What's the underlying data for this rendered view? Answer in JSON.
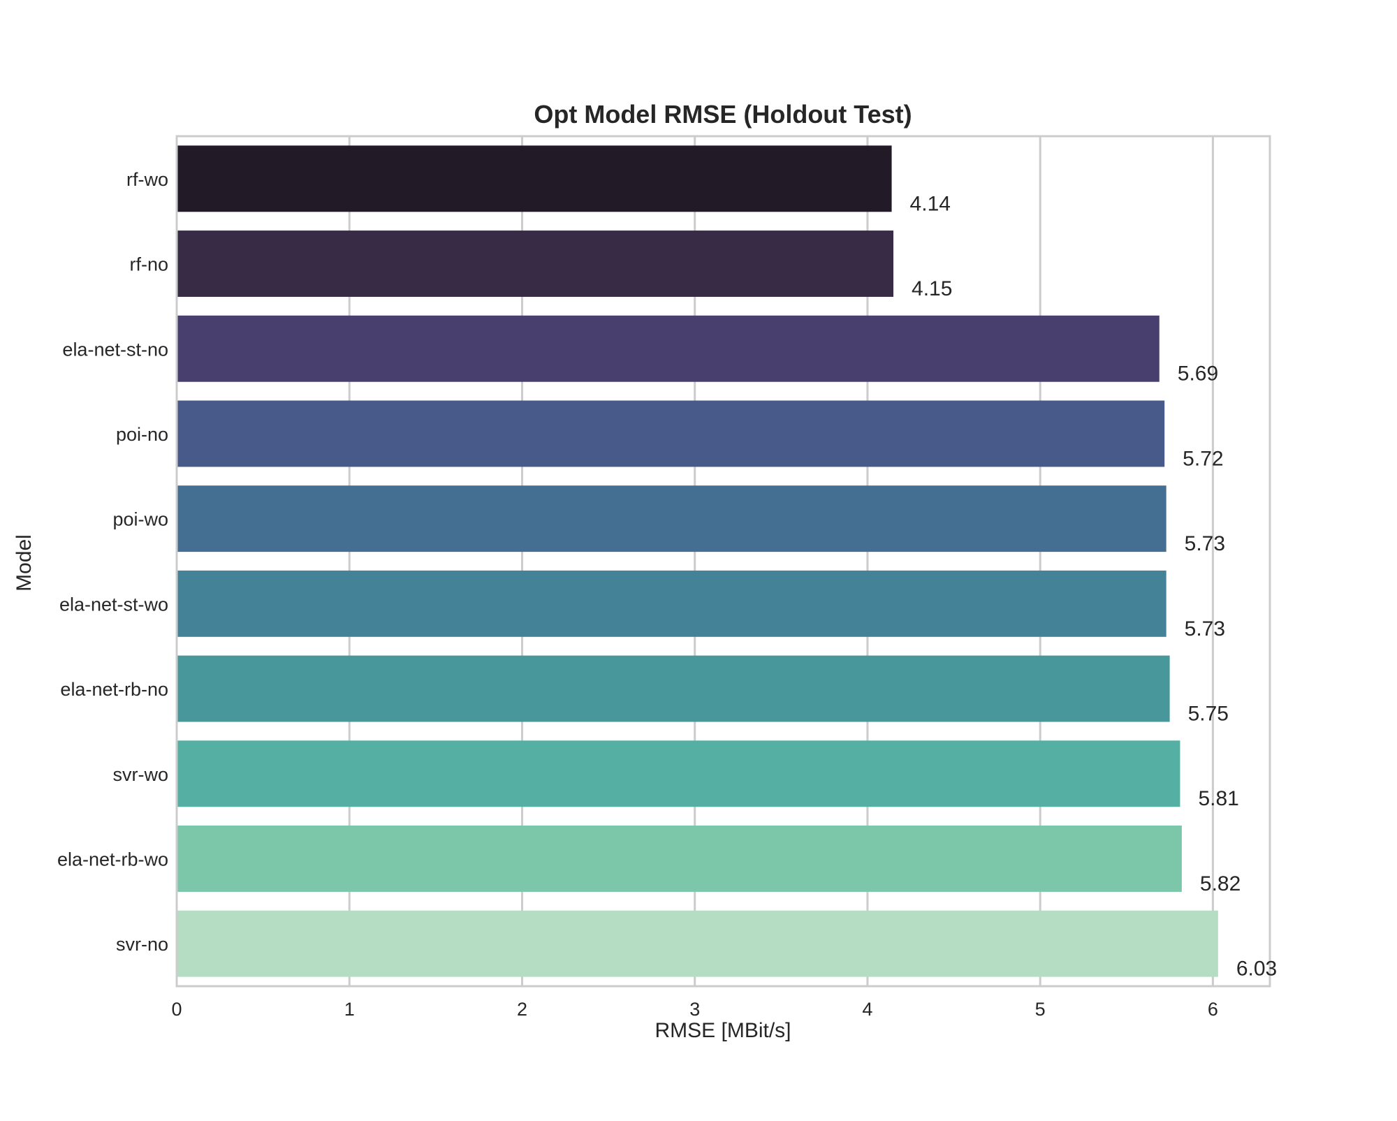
{
  "chart_data": {
    "type": "bar",
    "orientation": "horizontal",
    "title": "Opt Model RMSE (Holdout Test)",
    "xlabel": "RMSE [MBit/s]",
    "ylabel": "Model",
    "xlim": [
      0,
      6.33
    ],
    "xticks": [
      0,
      1,
      2,
      3,
      4,
      5,
      6
    ],
    "grid": true,
    "categories": [
      "rf-wo",
      "rf-no",
      "ela-net-st-no",
      "poi-no",
      "poi-wo",
      "ela-net-st-wo",
      "ela-net-rb-no",
      "svr-wo",
      "ela-net-rb-wo",
      "svr-no"
    ],
    "values": [
      4.14,
      4.15,
      5.69,
      5.72,
      5.73,
      5.73,
      5.75,
      5.81,
      5.82,
      6.03
    ],
    "value_labels": [
      "4.14",
      "4.15",
      "5.69",
      "5.72",
      "5.73",
      "5.73",
      "5.75",
      "5.81",
      "5.82",
      "6.03"
    ],
    "colors": [
      "#231A28",
      "#372B46",
      "#483F6E",
      "#485A8A",
      "#456F92",
      "#448397",
      "#47979B",
      "#55AFA2",
      "#7CC7AA",
      "#B4DDC3"
    ]
  }
}
